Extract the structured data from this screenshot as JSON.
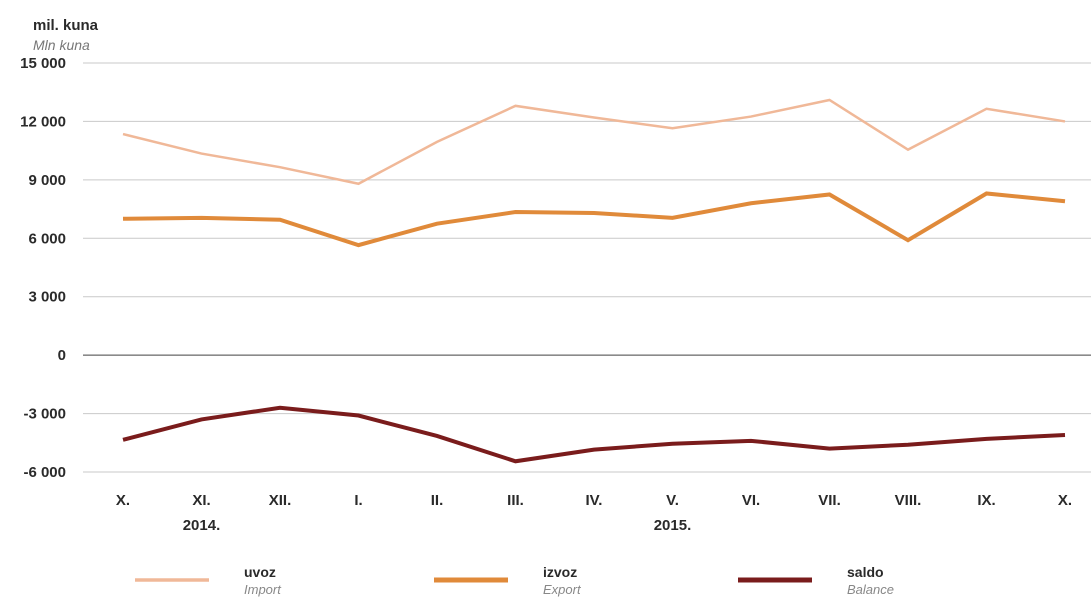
{
  "chart_data": {
    "type": "line",
    "unit_label": "mil. kuna",
    "unit_label_en": "Mln kuna",
    "categories": [
      "X.",
      "XI.",
      "XII.",
      "I.",
      "II.",
      "III.",
      "IV.",
      "V.",
      "VI.",
      "VII.",
      "VIII.",
      "IX.",
      "X."
    ],
    "year_labels": [
      {
        "text": "2014.",
        "category_index": 1
      },
      {
        "text": "2015.",
        "category_index": 7
      }
    ],
    "ylim": [
      -6000,
      15000
    ],
    "yticks": [
      15000,
      12000,
      9000,
      6000,
      3000,
      0,
      -3000,
      -6000
    ],
    "ytick_labels": [
      "15 000",
      "12 000",
      "9 000",
      "6 000",
      "3 000",
      "0",
      "-3 000",
      "-6 000"
    ],
    "grid": true,
    "legend_position": "bottom",
    "series": [
      {
        "name": "uvoz",
        "name_en": "Import",
        "color": "#f0b898",
        "values": [
          11350,
          10350,
          9650,
          8800,
          10950,
          12800,
          12200,
          11650,
          12250,
          13100,
          10550,
          12650,
          12000
        ]
      },
      {
        "name": "izvoz",
        "name_en": "Export",
        "color": "#e08a3a",
        "values": [
          7000,
          7050,
          6950,
          5650,
          6750,
          7350,
          7300,
          7050,
          7800,
          8250,
          5900,
          8300,
          7900
        ]
      },
      {
        "name": "saldo",
        "name_en": "Balance",
        "color": "#7a1c1c",
        "values": [
          -4350,
          -3300,
          -2700,
          -3100,
          -4150,
          -5450,
          -4850,
          -4550,
          -4400,
          -4800,
          -4600,
          -4300,
          -4100
        ]
      }
    ]
  }
}
